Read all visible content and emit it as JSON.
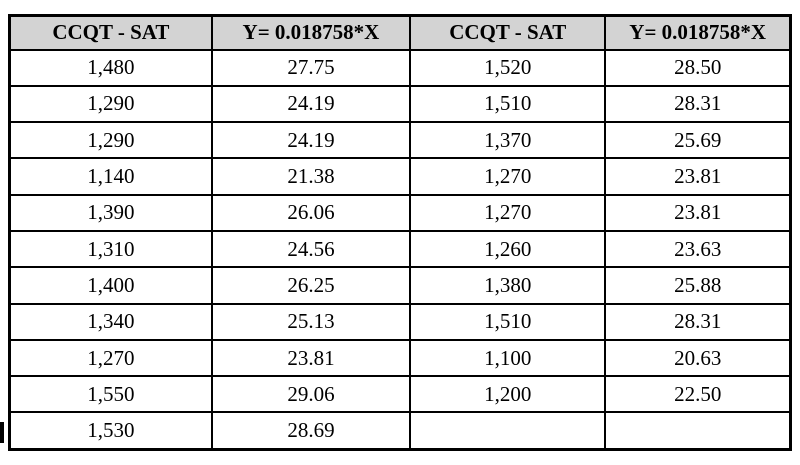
{
  "colors": {
    "header-bg": "#d3d3d3",
    "border": "#000000",
    "text": "#000000",
    "page-bg": "#ffffff"
  },
  "table": {
    "headers": [
      "CCQT - SAT",
      "Y= 0.018758*X",
      "CCQT - SAT",
      "Y= 0.018758*X"
    ],
    "rows": [
      [
        "1,480",
        "27.75",
        "1,520",
        "28.50"
      ],
      [
        "1,290",
        "24.19",
        "1,510",
        "28.31"
      ],
      [
        "1,290",
        "24.19",
        "1,370",
        "25.69"
      ],
      [
        "1,140",
        "21.38",
        "1,270",
        "23.81"
      ],
      [
        "1,390",
        "26.06",
        "1,270",
        "23.81"
      ],
      [
        "1,310",
        "24.56",
        "1,260",
        "23.63"
      ],
      [
        "1,400",
        "26.25",
        "1,380",
        "25.88"
      ],
      [
        "1,340",
        "25.13",
        "1,510",
        "28.31"
      ],
      [
        "1,270",
        "23.81",
        "1,100",
        "20.63"
      ],
      [
        "1,550",
        "29.06",
        "1,200",
        "22.50"
      ],
      [
        "1,530",
        "28.69",
        "",
        ""
      ]
    ]
  }
}
